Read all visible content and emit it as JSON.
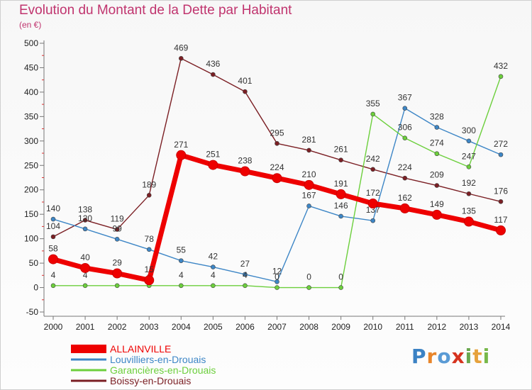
{
  "title": "Evolution du Montant de la Dette par Habitant",
  "subtitle": "(en €)",
  "logo": "Proxiti",
  "chart_data": {
    "type": "line",
    "x": [
      2000,
      2001,
      2002,
      2003,
      2004,
      2005,
      2006,
      2007,
      2008,
      2009,
      2010,
      2011,
      2012,
      2013,
      2014
    ],
    "ylim": [
      -50,
      500
    ],
    "yticks": [
      -50,
      0,
      50,
      100,
      150,
      200,
      250,
      300,
      350,
      400,
      450,
      500
    ],
    "grid": false,
    "legend_position": "bottom-left",
    "series": [
      {
        "name": "Boissy-en-Drouais",
        "color": "#7b1f24",
        "values": [
          104,
          138,
          119,
          189,
          469,
          436,
          401,
          295,
          281,
          261,
          242,
          224,
          209,
          192,
          176
        ]
      },
      {
        "name": "Louvilliers-en-Drouais",
        "color": "#3d86c6",
        "values": [
          140,
          120,
          99,
          78,
          55,
          42,
          27,
          12,
          167,
          146,
          137,
          367,
          328,
          300,
          272
        ]
      },
      {
        "name": "Garancières-en-Drouais",
        "color": "#6ccf3c",
        "values": [
          4,
          4,
          4,
          4,
          4,
          4,
          4,
          0,
          0,
          0,
          355,
          306,
          274,
          247,
          432
        ]
      },
      {
        "name": "ALLAINVILLE",
        "color": "#ee0000",
        "values": [
          58,
          40,
          29,
          15,
          271,
          251,
          238,
          224,
          210,
          191,
          172,
          162,
          149,
          135,
          117
        ]
      }
    ],
    "legend_order": [
      "ALLAINVILLE",
      "Louvilliers-en-Drouais",
      "Garancières-en-Drouais",
      "Boissy-en-Drouais"
    ]
  }
}
